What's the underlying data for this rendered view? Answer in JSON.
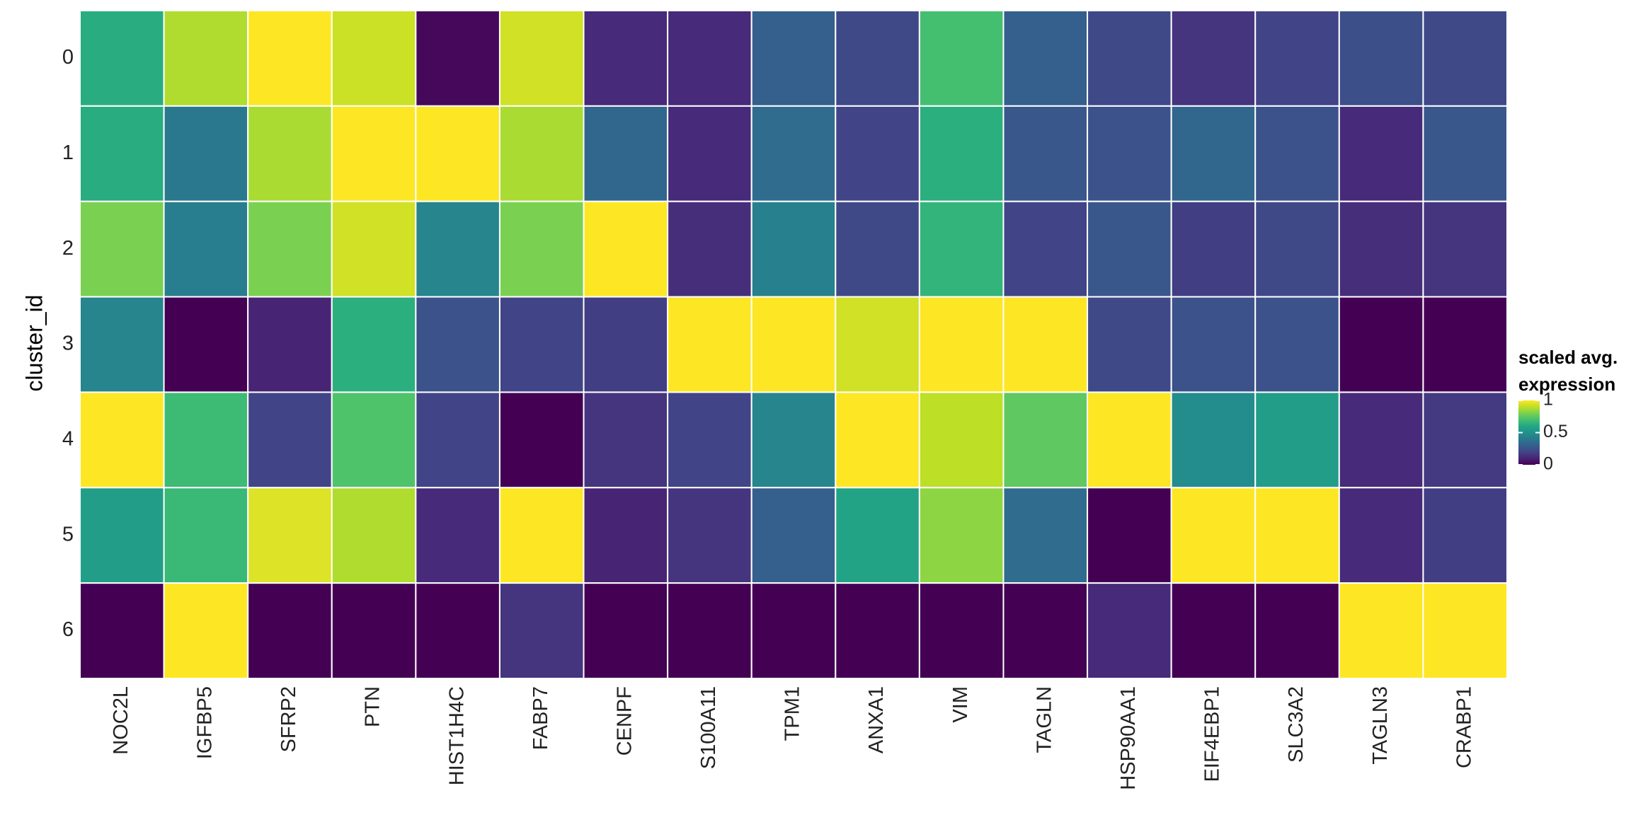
{
  "chart_data": {
    "type": "heatmap",
    "y_label": "cluster_id",
    "x": [
      "NOC2L",
      "IGFBP5",
      "SFRP2",
      "PTN",
      "HIST1H4C",
      "FABP7",
      "CENPF",
      "S100A11",
      "TPM1",
      "ANXA1",
      "VIM",
      "TAGLN",
      "HSP90AA1",
      "EIF4EBP1",
      "SLC3A2",
      "TAGLN3",
      "CRABP1"
    ],
    "y": [
      "0",
      "1",
      "2",
      "3",
      "4",
      "5",
      "6"
    ],
    "values": [
      [
        0.62,
        0.88,
        1,
        0.92,
        0.02,
        0.93,
        0.12,
        0.12,
        0.3,
        0.22,
        0.7,
        0.3,
        0.22,
        0.15,
        0.2,
        0.24,
        0.22
      ],
      [
        0.62,
        0.4,
        0.87,
        1,
        1,
        0.87,
        0.33,
        0.12,
        0.35,
        0.2,
        0.63,
        0.27,
        0.25,
        0.33,
        0.25,
        0.12,
        0.27
      ],
      [
        0.8,
        0.42,
        0.8,
        0.93,
        0.45,
        0.8,
        1,
        0.13,
        0.43,
        0.22,
        0.65,
        0.2,
        0.27,
        0.18,
        0.22,
        0.13,
        0.15
      ],
      [
        0.45,
        0,
        0.1,
        0.63,
        0.25,
        0.2,
        0.18,
        1,
        1,
        0.93,
        1,
        1,
        0.22,
        0.25,
        0.25,
        0,
        0
      ],
      [
        1,
        0.68,
        0.2,
        0.72,
        0.2,
        0,
        0.15,
        0.2,
        0.45,
        1,
        0.9,
        0.75,
        1,
        0.48,
        0.55,
        0.12,
        0.17
      ],
      [
        0.55,
        0.67,
        0.95,
        0.88,
        0.12,
        1,
        0.1,
        0.15,
        0.3,
        0.58,
        0.83,
        0.35,
        0,
        1,
        1,
        0.12,
        0.18
      ],
      [
        0,
        1,
        0,
        0,
        0,
        0.15,
        0,
        0,
        0,
        0,
        0,
        0,
        0.12,
        0,
        0,
        1,
        1
      ]
    ],
    "colormap": [
      "#440154",
      "#482475",
      "#414487",
      "#355f8d",
      "#2a788e",
      "#21918c",
      "#22a884",
      "#44bf70",
      "#7ad151",
      "#bddf26",
      "#fde725"
    ],
    "clim": [
      0,
      1
    ],
    "cticks": [
      0,
      0.5,
      1
    ],
    "legend_title": [
      "scaled avg.",
      "expression"
    ]
  }
}
